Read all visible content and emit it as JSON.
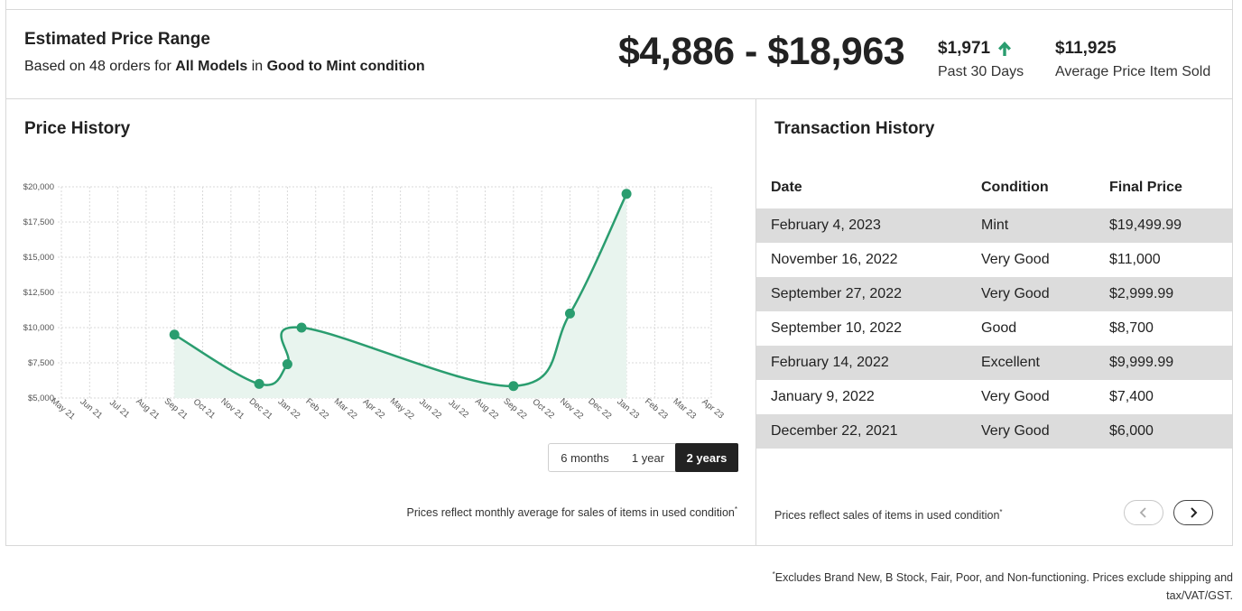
{
  "estimate": {
    "title": "Estimated Price Range",
    "sub_prefix": "Based on 48 orders for",
    "sub_models": "All Models",
    "sub_in": "in",
    "sub_condition": "Good to Mint condition",
    "range": "$4,886 - $18,963",
    "past_value": "$1,971",
    "past_label": "Past 30 Days",
    "avg_value": "$11,925",
    "avg_label": "Average Price Item Sold",
    "accent_color": "#2a9d6f"
  },
  "price_history": {
    "title": "Price History",
    "footnote": "Prices reflect monthly average for sales of items in used condition",
    "footnote_mark": "*",
    "range_buttons": [
      "6 months",
      "1 year",
      "2 years"
    ],
    "selected_range": "2 years"
  },
  "chart_data": {
    "type": "area",
    "x_labels": [
      "May 21",
      "Jun 21",
      "Jul 21",
      "Aug 21",
      "Sep 21",
      "Oct 21",
      "Nov 21",
      "Dec 21",
      "Jan 22",
      "Feb 22",
      "Mar 22",
      "Apr 22",
      "May 22",
      "Jun 22",
      "Jul 22",
      "Aug 22",
      "Sep 22",
      "Oct 22",
      "Nov 22",
      "Dec 22",
      "Jan 23",
      "Feb 23",
      "Mar 23",
      "Apr 23"
    ],
    "y_ticks": [
      "$5,000",
      "$7,500",
      "$10,000",
      "$12,500",
      "$15,000",
      "$17,500",
      "$20,000"
    ],
    "ylim": [
      5000,
      20000
    ],
    "points": [
      {
        "x": 4,
        "y": 9500
      },
      {
        "x": 7,
        "y": 6000
      },
      {
        "x": 8,
        "y": 7400
      },
      {
        "x": 8.5,
        "y": 10000
      },
      {
        "x": 16,
        "y": 5850
      },
      {
        "x": 18,
        "y": 11000
      },
      {
        "x": 20,
        "y": 19500
      }
    ],
    "line_color": "#2a9d6f",
    "fill_color": "#e8f4ee",
    "grid": true
  },
  "transactions": {
    "title": "Transaction History",
    "headers": [
      "Date",
      "Condition",
      "Final Price"
    ],
    "rows": [
      [
        "February 4, 2023",
        "Mint",
        "$19,499.99"
      ],
      [
        "November 16, 2022",
        "Very Good",
        "$11,000"
      ],
      [
        "September 27, 2022",
        "Very Good",
        "$2,999.99"
      ],
      [
        "September 10, 2022",
        "Good",
        "$8,700"
      ],
      [
        "February 14, 2022",
        "Excellent",
        "$9,999.99"
      ],
      [
        "January 9, 2022",
        "Very Good",
        "$7,400"
      ],
      [
        "December 22, 2021",
        "Very Good",
        "$6,000"
      ]
    ],
    "footnote": "Prices reflect sales of items in used condition",
    "footnote_mark": "*"
  },
  "bottom_note": {
    "mark": "*",
    "text": "Excludes Brand New, B Stock, Fair, Poor, and Non-functioning. Prices exclude shipping and tax/VAT/GST."
  }
}
